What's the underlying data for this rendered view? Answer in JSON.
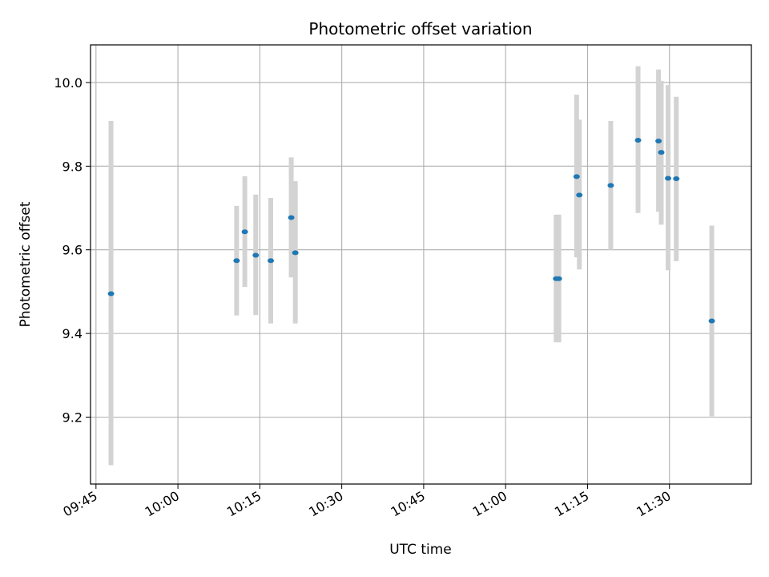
{
  "chart_data": {
    "type": "scatter",
    "title": "Photometric offset variation",
    "xlabel": "UTC time",
    "ylabel": "Photometric offset",
    "x_tick_labels": [
      "09:45",
      "10:00",
      "10:15",
      "10:30",
      "10:45",
      "11:00",
      "11:15",
      "11:30"
    ],
    "y_tick_values": [
      9.2,
      9.4,
      9.6,
      9.8,
      10.0
    ],
    "y_tick_labels": [
      "9.2",
      "9.4",
      "9.6",
      "9.8",
      "10.0"
    ],
    "xlim": [
      "09:44",
      "11:45"
    ],
    "ylim": [
      9.04,
      10.09
    ],
    "grid": true,
    "colors": {
      "marker": "#1f77b4",
      "errorbar": "#d3d3d3",
      "grid": "#b0b0b0"
    },
    "points": [
      {
        "time": "09:47:45",
        "y": 9.495,
        "low": 9.085,
        "high": 9.908
      },
      {
        "time": "10:10:45",
        "y": 9.574,
        "low": 9.443,
        "high": 9.705
      },
      {
        "time": "10:12:15",
        "y": 9.643,
        "low": 9.511,
        "high": 9.776
      },
      {
        "time": "10:14:15",
        "y": 9.587,
        "low": 9.444,
        "high": 9.732
      },
      {
        "time": "10:17:00",
        "y": 9.574,
        "low": 9.424,
        "high": 9.724
      },
      {
        "time": "10:20:45",
        "y": 9.677,
        "low": 9.534,
        "high": 9.821
      },
      {
        "time": "10:21:30",
        "y": 9.593,
        "low": 9.424,
        "high": 9.764
      },
      {
        "time": "11:09:15",
        "y": 9.531,
        "low": 9.379,
        "high": 9.684
      },
      {
        "time": "11:09:45",
        "y": 9.531,
        "low": 9.379,
        "high": 9.684
      },
      {
        "time": "11:13:00",
        "y": 9.775,
        "low": 9.582,
        "high": 9.971
      },
      {
        "time": "11:13:30",
        "y": 9.731,
        "low": 9.553,
        "high": 9.911
      },
      {
        "time": "11:19:15",
        "y": 9.754,
        "low": 9.6,
        "high": 9.908
      },
      {
        "time": "11:24:15",
        "y": 9.862,
        "low": 9.688,
        "high": 10.039
      },
      {
        "time": "11:28:00",
        "y": 9.86,
        "low": 9.691,
        "high": 10.031
      },
      {
        "time": "11:28:30",
        "y": 9.833,
        "low": 9.66,
        "high": 10.004
      },
      {
        "time": "11:29:45",
        "y": 9.771,
        "low": 9.551,
        "high": 9.994
      },
      {
        "time": "11:31:15",
        "y": 9.77,
        "low": 9.573,
        "high": 9.966
      },
      {
        "time": "11:37:45",
        "y": 9.43,
        "low": 9.202,
        "high": 9.658
      }
    ]
  }
}
